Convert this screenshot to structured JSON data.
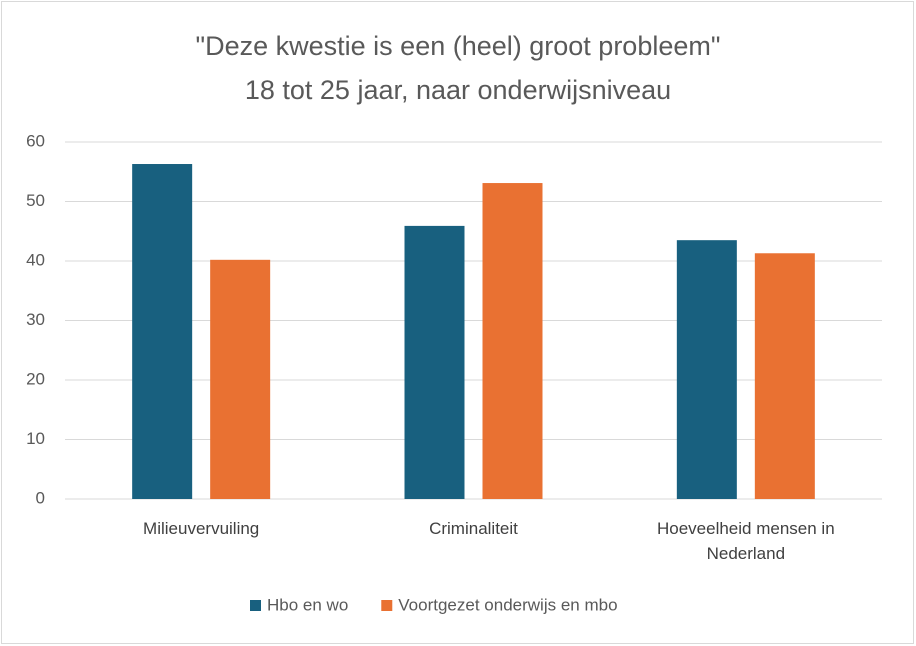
{
  "chart_data": {
    "type": "bar",
    "title": "\"Deze kwestie is een (heel) groot probleem\"",
    "subtitle": "18 tot 25 jaar, naar onderwijsniveau",
    "categories": [
      "Milieuvervuiling",
      "Criminaliteit",
      "Hoeveelheid mensen in Nederland"
    ],
    "series": [
      {
        "name": "Hbo en wo",
        "color": "#18607f",
        "values": [
          56.3,
          45.9,
          43.5
        ]
      },
      {
        "name": "Voortgezet onderwijs en mbo",
        "color": "#e97132",
        "values": [
          40.2,
          53.1,
          41.3
        ]
      }
    ],
    "ylim": [
      0,
      60
    ],
    "yticks": [
      0,
      10,
      20,
      30,
      40,
      50,
      60
    ],
    "grid": true,
    "legend": "bottom"
  }
}
